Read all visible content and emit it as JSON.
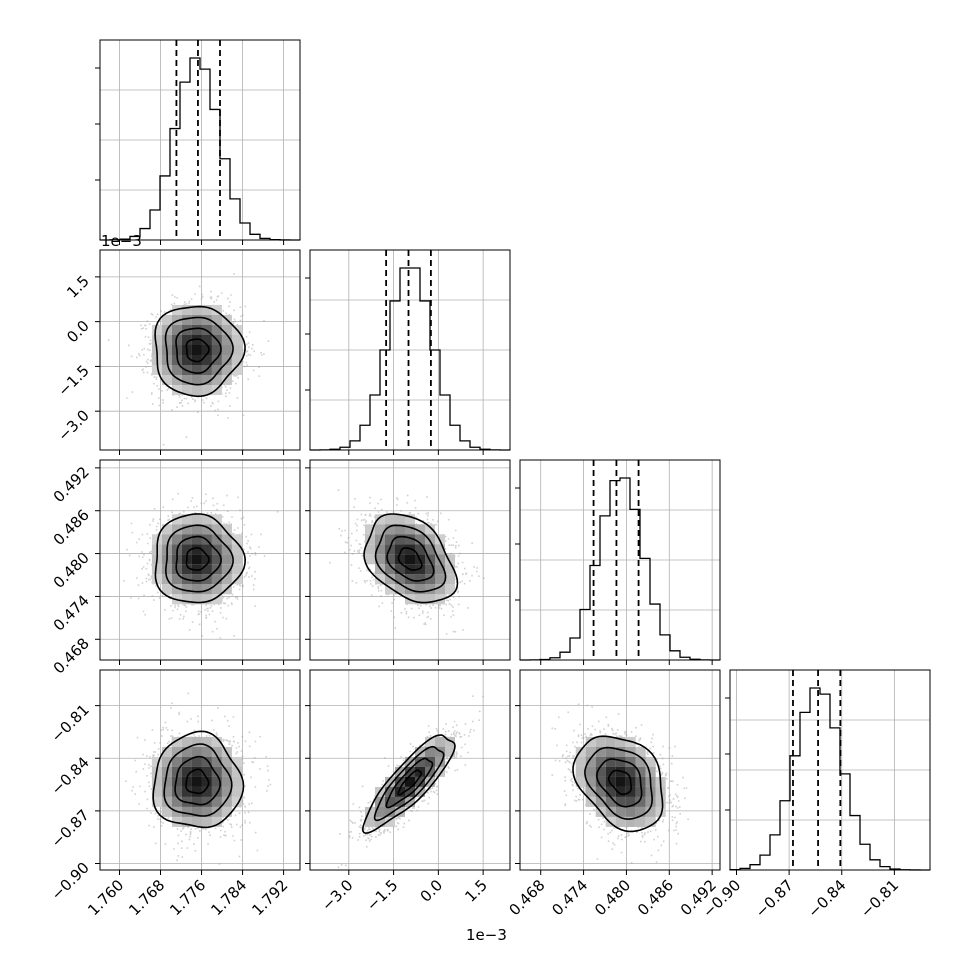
{
  "chart_data": {
    "type": "corner",
    "grid": true,
    "parameters": [
      {
        "range": [
          1.7562,
          1.7952
        ],
        "scale_label": "1e−3",
        "ticks": [
          1.76,
          1.768,
          1.776,
          1.784,
          1.792
        ],
        "tick_labels": [
          "1.760",
          "1.768",
          "1.776",
          "1.784",
          "1.792"
        ],
        "quantiles": [
          1.7711,
          1.7753,
          1.7796
        ],
        "peak": 1.7751,
        "sigma": 0.0043
      },
      {
        "range": [
          -4.3,
          2.4
        ],
        "scale_label": "1e−3",
        "ticks": [
          -3.0,
          -1.5,
          0.0,
          1.5
        ],
        "tick_labels": [
          "−3.0",
          "−1.5",
          "0.0",
          "1.5"
        ],
        "quantiles": [
          -1.75,
          -1.0,
          -0.25
        ],
        "peak": -0.95,
        "sigma": 0.75
      },
      {
        "range": [
          0.4651,
          0.4931
        ],
        "scale_label": "",
        "ticks": [
          0.468,
          0.474,
          0.48,
          0.486,
          0.492
        ],
        "tick_labels": [
          "0.468",
          "0.474",
          "0.480",
          "0.486",
          "0.492"
        ],
        "quantiles": [
          0.4754,
          0.4786,
          0.4817
        ],
        "peak": 0.4792,
        "sigma": 0.0031
      },
      {
        "range": [
          -0.9037,
          -0.7897
        ],
        "scale_label": "",
        "ticks": [
          -0.9,
          -0.87,
          -0.84,
          -0.81
        ],
        "tick_labels": [
          "−0.90",
          "−0.87",
          "−0.84",
          "−0.81"
        ],
        "quantiles": [
          -0.8678,
          -0.8535,
          -0.8408
        ],
        "peak": -0.8535,
        "sigma": 0.0135
      }
    ],
    "correlations": {
      "1-0": 0.0,
      "2-0": 0.0,
      "2-1": -0.35,
      "3-0": 0.0,
      "3-1": 0.85,
      "3-2": -0.3
    }
  }
}
